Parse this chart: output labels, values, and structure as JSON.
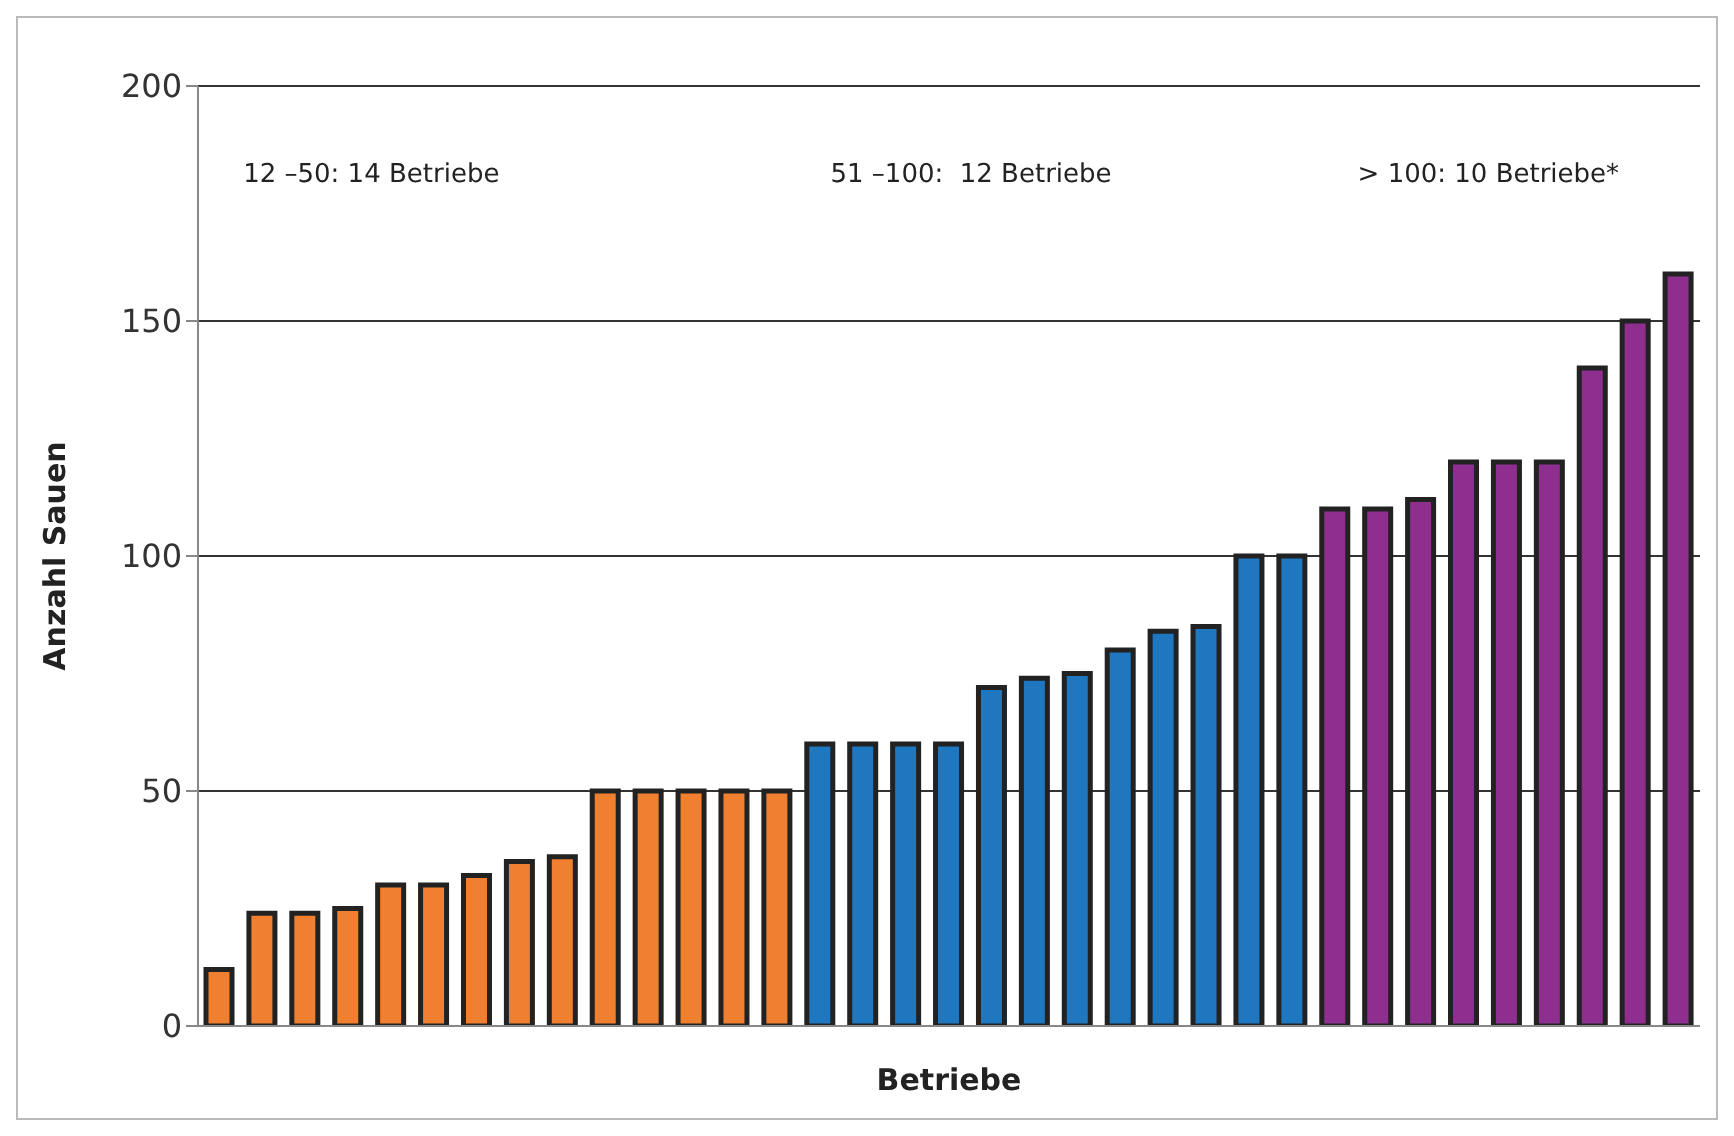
{
  "chart_data": {
    "type": "bar",
    "xlabel": "Betriebe",
    "ylabel": "Anzahl Sauen",
    "categories": [
      null,
      null,
      null,
      null,
      null,
      null,
      null,
      null,
      null,
      null,
      null,
      null,
      null,
      null,
      null,
      null,
      null,
      null,
      null,
      null,
      null,
      null,
      null,
      null,
      null,
      null,
      null,
      null,
      null,
      null,
      null,
      null,
      null,
      null,
      null
    ],
    "values": [
      12,
      24,
      24,
      25,
      30,
      30,
      32,
      35,
      36,
      50,
      50,
      50,
      50,
      50,
      60,
      60,
      60,
      60,
      72,
      74,
      75,
      80,
      84,
      85,
      100,
      100,
      110,
      110,
      112,
      120,
      120,
      120,
      140,
      150,
      160
    ],
    "colors": [
      "#f08030",
      "#f08030",
      "#f08030",
      "#f08030",
      "#f08030",
      "#f08030",
      "#f08030",
      "#f08030",
      "#f08030",
      "#f08030",
      "#f08030",
      "#f08030",
      "#f08030",
      "#f08030",
      "#1f77c0",
      "#1f77c0",
      "#1f77c0",
      "#1f77c0",
      "#1f77c0",
      "#1f77c0",
      "#1f77c0",
      "#1f77c0",
      "#1f77c0",
      "#1f77c0",
      "#1f77c0",
      "#1f77c0",
      "#8e2e8e",
      "#8e2e8e",
      "#8e2e8e",
      "#8e2e8e",
      "#8e2e8e",
      "#8e2e8e",
      "#8e2e8e",
      "#8e2e8e",
      "#8e2e8e"
    ],
    "ylim": [
      0,
      200
    ],
    "yticks": [
      0,
      50,
      100,
      150,
      200
    ],
    "grid": "y",
    "annotations": [
      "12 –50: 14 Betriebe",
      "51 –100:  12 Betriebe",
      "> 100: 10 Betriebe*"
    ]
  }
}
